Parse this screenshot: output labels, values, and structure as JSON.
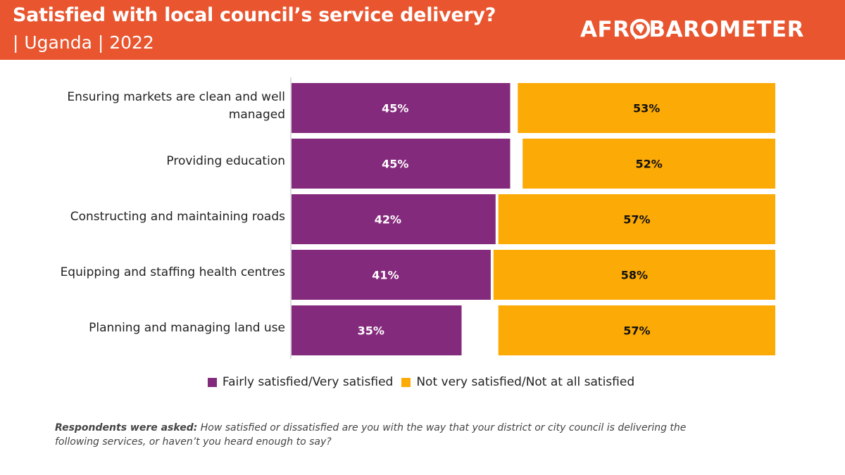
{
  "header": {
    "title": "Satisfied with local council’s service delivery?",
    "subtitle": "| Uganda | 2022",
    "logo_text_pre": "AFR",
    "logo_text_post": "BAROMETER",
    "background_color": "#e8552f"
  },
  "chart_data": {
    "type": "bar",
    "orientation": "horizontal",
    "categories": [
      [
        "Ensuring markets are clean and well",
        "managed"
      ],
      [
        "Providing education"
      ],
      [
        "Constructing and maintaining roads"
      ],
      [
        "Equipping and staffing health centres"
      ],
      [
        "Planning and managing land use"
      ]
    ],
    "series": [
      {
        "name": "Fairly satisfied/Very satisfied",
        "values": [
          45,
          45,
          42,
          41,
          35
        ],
        "labels": [
          "45%",
          "45%",
          "42%",
          "41%",
          "35%"
        ],
        "color": "#842a7c",
        "label_color": "#ffffff"
      },
      {
        "name": "Not very satisfied/Not at all satisfied",
        "values": [
          53,
          52,
          57,
          58,
          57
        ],
        "labels": [
          "53%",
          "52%",
          "57%",
          "58%",
          "57%"
        ],
        "color": "#fcaa05",
        "label_color": "#111111"
      }
    ],
    "xlim": [
      0,
      100
    ],
    "legend_position": "bottom-center",
    "grid": false
  },
  "footnote": {
    "prefix": "Respondents were asked:",
    "text": " How satisfied or dissatisfied are you with the way that your district or city council is delivering the following services, or haven’t you heard enough to say?"
  }
}
